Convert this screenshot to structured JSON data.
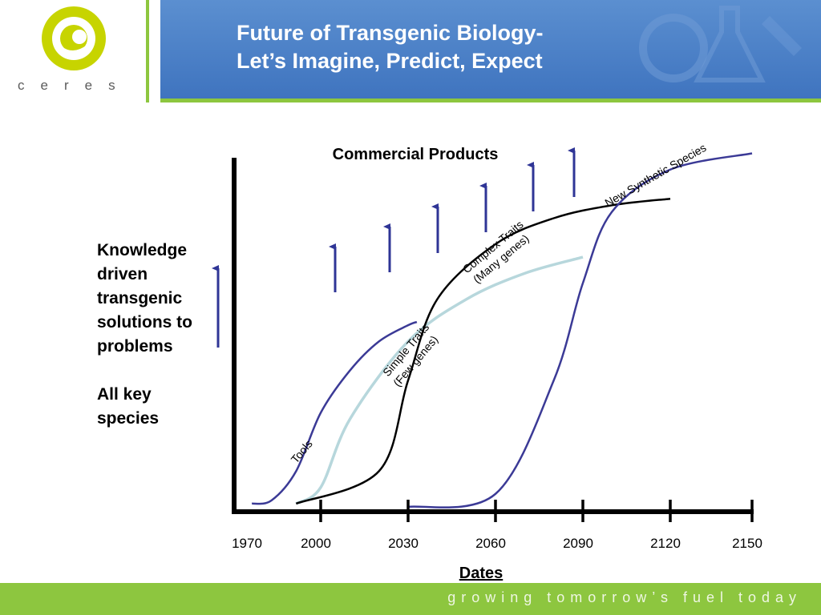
{
  "slide": {
    "title_line1": "Future of Transgenic Biology-",
    "title_line2": "Let’s Imagine, Predict, Expect",
    "logo_text": "ceres",
    "footer_text": "growing tomorrow’s fuel today",
    "left_text_lines": [
      "Knowledge",
      "driven",
      "transgenic",
      "solutions to",
      "problems"
    ],
    "left_text_2": [
      "All key",
      "species"
    ]
  },
  "colors": {
    "header_blue": "#4a7fc6",
    "accent_green": "#8dc63f",
    "tools_curve": "#3b3a96",
    "simple_traits_curve": "#b7d7dc",
    "complex_traits_curve": "#000000",
    "synthetic_curve": "#3b3a96",
    "arrow": "#2f3596"
  },
  "chart_data": {
    "type": "line",
    "title": "Commercial Products",
    "xlabel": "Dates",
    "ylabel": "",
    "x_ticks": [
      "1970",
      "2000",
      "2030",
      "2060",
      "2090",
      "2120",
      "2150"
    ],
    "xlim": [
      1970,
      2150
    ],
    "series": [
      {
        "name": "Tools",
        "x": [
          1972,
          1980,
          1990,
          2000,
          2010,
          2020,
          2030,
          2033
        ],
        "y": [
          0.02,
          0.03,
          0.12,
          0.3,
          0.43,
          0.52,
          0.57,
          0.58
        ]
      },
      {
        "name": "Simple Traits (Few genes)",
        "x": [
          1990,
          2000,
          2010,
          2030,
          2050,
          2070,
          2090
        ],
        "y": [
          0.02,
          0.07,
          0.28,
          0.52,
          0.65,
          0.73,
          0.78
        ]
      },
      {
        "name": "Complex Traits (Many genes)",
        "x": [
          1990,
          2020,
          2030,
          2040,
          2060,
          2080,
          2100,
          2120
        ],
        "y": [
          0.02,
          0.12,
          0.4,
          0.65,
          0.82,
          0.9,
          0.94,
          0.96
        ]
      },
      {
        "name": "New Synthetic Species",
        "x": [
          2030,
          2060,
          2080,
          2090,
          2100,
          2120,
          2150
        ],
        "y": [
          0.01,
          0.05,
          0.4,
          0.7,
          0.92,
          1.05,
          1.1
        ]
      }
    ],
    "annotations": [
      "Tools",
      "Simple Traits",
      "(Few genes)",
      "Complex Traits",
      "(Many genes)",
      "New Synthetic Species"
    ]
  }
}
